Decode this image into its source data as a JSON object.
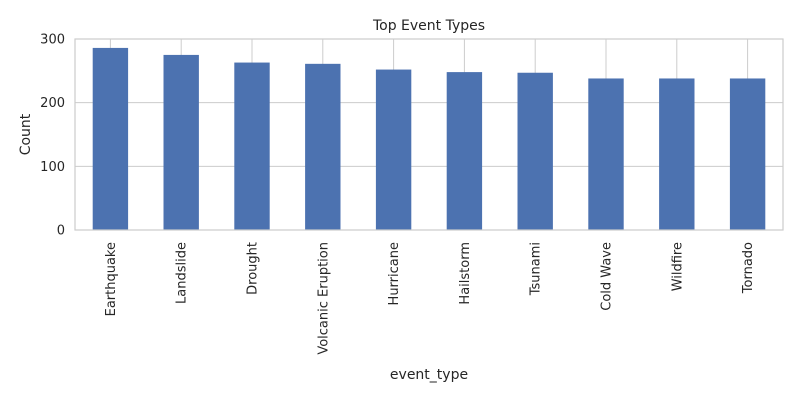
{
  "chart_data": {
    "type": "bar",
    "title": "Top Event Types",
    "xlabel": "event_type",
    "ylabel": "Count",
    "categories": [
      "Earthquake",
      "Landslide",
      "Drought",
      "Volcanic Eruption",
      "Hurricane",
      "Hailstorm",
      "Tsunami",
      "Cold Wave",
      "Wildfire",
      "Tornado"
    ],
    "values": [
      286,
      275,
      263,
      261,
      252,
      248,
      247,
      238,
      238,
      238
    ],
    "ylim": [
      0,
      300
    ],
    "yticks": [
      "0",
      "100",
      "200",
      "300"
    ],
    "grid": true,
    "bar_color": "#4c72b0"
  }
}
